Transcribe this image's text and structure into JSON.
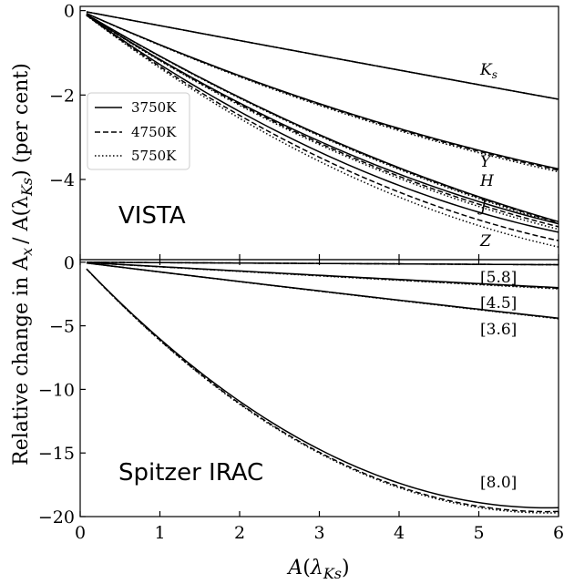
{
  "chart_data": [
    {
      "type": "line",
      "panel": "top",
      "title": "VISTA",
      "ylim": [
        -5.9,
        0.1
      ],
      "xlim": [
        0,
        6
      ],
      "yticks": [
        "0",
        "−2",
        "−4"
      ],
      "yticks_values": [
        0,
        -2,
        -4
      ],
      "legend": {
        "placement": "upper-left",
        "entries": [
          {
            "label": "3750K",
            "style": "solid"
          },
          {
            "label": "4750K",
            "style": "dashed"
          },
          {
            "label": "5750K",
            "style": "dotted"
          }
        ]
      },
      "bands": [
        {
          "name": "Ks",
          "label_main": "K",
          "label_sub": "s",
          "endpoints": [
            -2.1,
            -2.1,
            -2.1
          ],
          "curvature": 0.02
        },
        {
          "name": "Y",
          "label_main": "Y",
          "label_sub": "",
          "endpoints": [
            -3.75,
            -3.78,
            -3.82
          ],
          "curvature": 0.35
        },
        {
          "name": "H",
          "label_main": "H",
          "label_sub": "",
          "endpoints": [
            -5.0,
            -5.02,
            -5.05
          ],
          "curvature": 0.35
        },
        {
          "name": "J",
          "label_main": "J",
          "label_sub": "",
          "endpoints": [
            -5.05,
            -5.12,
            -5.18
          ],
          "curvature": 0.45
        },
        {
          "name": "Z",
          "label_main": "Z",
          "label_sub": "",
          "endpoints": [
            -5.25,
            -5.45,
            -5.6
          ],
          "curvature": 0.55
        }
      ]
    },
    {
      "type": "line",
      "panel": "bottom",
      "title": "Spitzer IRAC",
      "ylim": [
        -20,
        0.2
      ],
      "xlim": [
        0,
        6
      ],
      "xlabel": "A(λKs)",
      "xticks": [
        "0",
        "1",
        "2",
        "3",
        "4",
        "5",
        "6"
      ],
      "yticks": [
        "0",
        "−5",
        "−10",
        "−15",
        "−20"
      ],
      "yticks_values": [
        0,
        -5,
        -10,
        -15,
        -20
      ],
      "bands": [
        {
          "name": "[5.8]",
          "label": "[5.8]",
          "endpoints": [
            -0.2,
            -0.2,
            -0.2
          ],
          "curvature": 0.0
        },
        {
          "name": "[4.5]",
          "label": "[4.5]",
          "endpoints": [
            -2.0,
            -2.05,
            -2.1
          ],
          "curvature": 0.05
        },
        {
          "name": "[3.6]",
          "label": "[3.6]",
          "endpoints": [
            -4.4,
            -4.42,
            -4.45
          ],
          "curvature": 0.05
        },
        {
          "name": "[8.0]",
          "label": "[8.0]",
          "endpoints": [
            -19.3,
            -19.6,
            -19.7
          ],
          "curvature": 1.05
        }
      ]
    }
  ],
  "ylabel_main": "Relative change in A",
  "ylabel_sub": "x",
  "ylabel_rest": "/ A(λ",
  "ylabel_sub2": "Ks",
  "ylabel_tail": ") (per cent)"
}
